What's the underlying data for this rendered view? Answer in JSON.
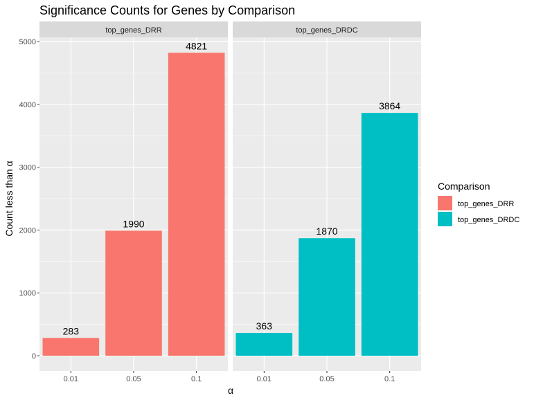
{
  "chart_data": {
    "type": "bar",
    "title": "Significance Counts for Genes by Comparison",
    "xlabel": "α",
    "ylabel": "Count less than α",
    "categories": [
      "0.01",
      "0.05",
      "0.1"
    ],
    "ylim": [
      0,
      5000
    ],
    "yticks": [
      0,
      1000,
      2000,
      3000,
      4000,
      5000
    ],
    "grid": true,
    "legend": {
      "title": "Comparison",
      "position": "right",
      "entries": [
        "top_genes_DRR",
        "top_genes_DRDC"
      ]
    },
    "series": [
      {
        "name": "top_genes_DRR",
        "color": "#F8766D",
        "values": [
          283,
          1990,
          4821
        ]
      },
      {
        "name": "top_genes_DRDC",
        "color": "#00BFC4",
        "values": [
          363,
          1870,
          3864
        ]
      }
    ],
    "facets": [
      "top_genes_DRR",
      "top_genes_DRDC"
    ]
  }
}
